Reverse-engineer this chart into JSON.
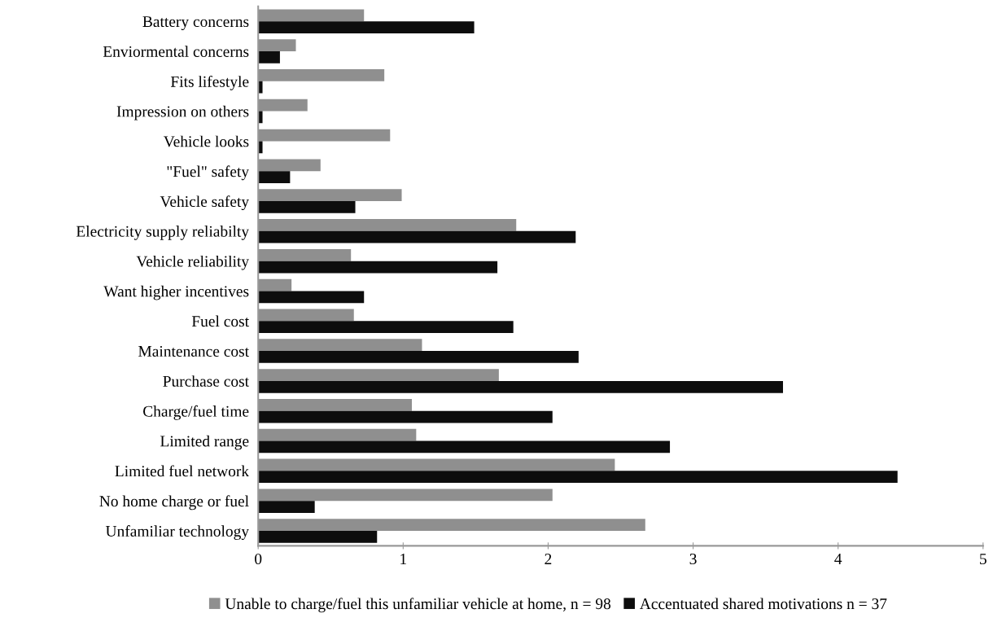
{
  "chart_data": {
    "type": "bar",
    "orientation": "horizontal",
    "categories": [
      "Battery concerns",
      "Enviormental concerns",
      "Fits lifestyle",
      "Impression on others",
      "Vehicle looks",
      "\"Fuel\" safety",
      "Vehicle safety",
      "Electricity supply reliabilty",
      "Vehicle reliability",
      "Want higher incentives",
      "Fuel cost",
      "Maintenance cost",
      "Purchase cost",
      "Charge/fuel time",
      "Limited range",
      "Limited fuel network",
      "No home charge or fuel",
      "Unfamiliar technology"
    ],
    "series": [
      {
        "name": "Unable to charge/fuel this unfamiliar vehicle at home, n = 98",
        "color": "#8f8f8f",
        "values": [
          0.73,
          0.26,
          0.87,
          0.34,
          0.91,
          0.43,
          0.99,
          1.78,
          0.64,
          0.23,
          0.66,
          1.13,
          1.66,
          1.06,
          1.09,
          2.46,
          2.03,
          2.67
        ]
      },
      {
        "name": "Accentuated shared motivations n = 37",
        "color": "#0d0d0d",
        "values": [
          1.49,
          0.15,
          0.03,
          0.03,
          0.03,
          0.22,
          0.67,
          2.19,
          1.65,
          0.73,
          1.76,
          2.21,
          3.62,
          2.03,
          2.84,
          4.41,
          0.39,
          0.82
        ]
      }
    ],
    "xlim": [
      0,
      5
    ],
    "xticks": [
      0,
      1,
      2,
      3,
      4,
      5
    ],
    "grid": false,
    "legend": "bottom"
  }
}
